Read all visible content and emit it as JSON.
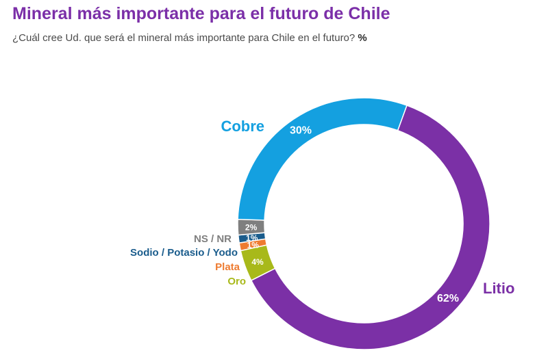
{
  "header": {
    "title": "Mineral más importante para el futuro de Chile",
    "subtitle": "¿Cuál cree Ud. que será el mineral más importante para Chile en el futuro?",
    "unit": "%"
  },
  "chart_data": {
    "type": "pie",
    "variant": "donut",
    "title": "Mineral más importante para el futuro de Chile",
    "slices": [
      {
        "label": "Litio",
        "value": 62,
        "value_label": "62%",
        "color": "#7b30a6"
      },
      {
        "label": "Oro",
        "value": 4,
        "value_label": "4%",
        "color": "#a8b91a"
      },
      {
        "label": "Plata",
        "value": 1,
        "value_label": "1%",
        "color": "#ee7b30"
      },
      {
        "label": "Sodio / Potasio / Yodo",
        "value": 1,
        "value_label": "1%",
        "color": "#1a5c8c"
      },
      {
        "label": "NS / NR",
        "value": 2,
        "value_label": "2%",
        "color": "#7f7f7f"
      },
      {
        "label": "Cobre",
        "value": 30,
        "value_label": "30%",
        "color": "#14a0e0"
      }
    ]
  }
}
